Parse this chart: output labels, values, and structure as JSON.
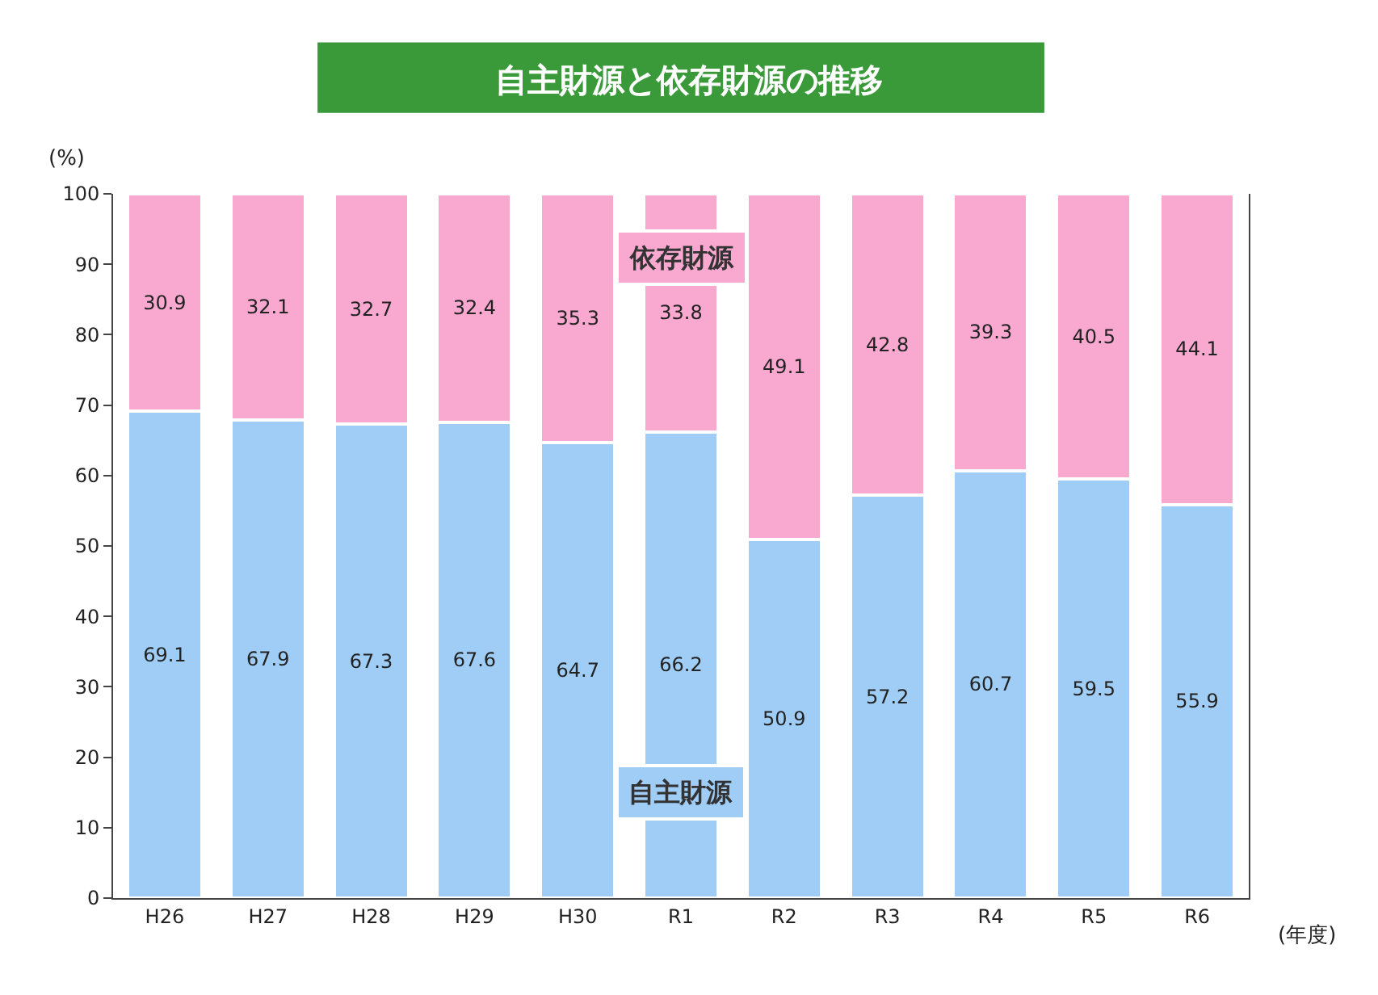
{
  "chart_data": {
    "type": "bar",
    "title": "自主財源と依存財源の推移",
    "ylabel": "(%)",
    "xlabel": "(年度)",
    "categories": [
      "H26",
      "H27",
      "H28",
      "H29",
      "H30",
      "R1",
      "R2",
      "R3",
      "R4",
      "R5",
      "R6"
    ],
    "stacked": true,
    "data_labels": true,
    "legend": false,
    "ylim": [
      0,
      100
    ],
    "yticks": [
      0,
      10,
      20,
      30,
      40,
      50,
      60,
      70,
      80,
      90,
      100
    ],
    "series": [
      {
        "name": "自主財源",
        "color": "#9fcdf5",
        "values": [
          69.1,
          67.9,
          67.3,
          67.6,
          64.7,
          66.2,
          50.9,
          57.2,
          60.7,
          59.5,
          55.9
        ]
      },
      {
        "name": "依存財源",
        "color": "#f9a8d0",
        "values": [
          30.9,
          32.1,
          32.7,
          32.4,
          35.3,
          33.8,
          49.1,
          42.8,
          39.3,
          40.5,
          44.1
        ]
      }
    ]
  }
}
